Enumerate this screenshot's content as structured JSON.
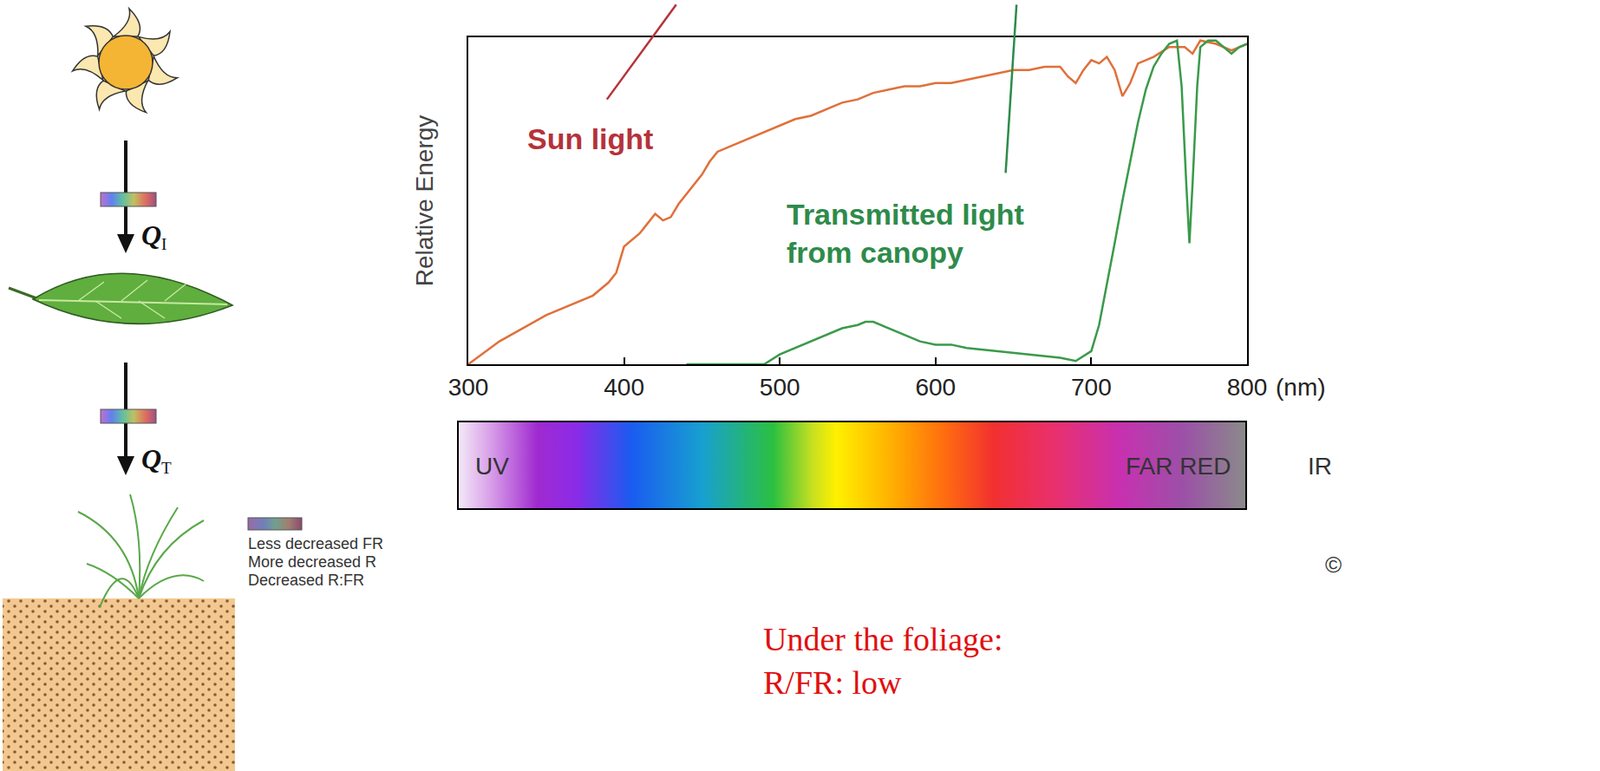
{
  "chart_data": {
    "type": "line",
    "ylabel": "Relative Energy",
    "xlabel": "(nm)",
    "xlim": [
      300,
      800
    ],
    "xticks": [
      300,
      400,
      500,
      600,
      700,
      800
    ],
    "ylim": [
      0,
      100
    ],
    "yticks": [],
    "tick_labels": "x",
    "grid": false,
    "series": [
      {
        "color": "#e0703a",
        "line_style": "solid",
        "x": [
          300,
          320,
          350,
          370,
          380,
          390,
          395,
          400,
          405,
          410,
          415,
          420,
          425,
          430,
          435,
          440,
          445,
          450,
          455,
          460,
          470,
          480,
          490,
          500,
          510,
          520,
          530,
          540,
          550,
          560,
          570,
          580,
          590,
          600,
          610,
          620,
          630,
          640,
          650,
          660,
          670,
          680,
          685,
          690,
          695,
          700,
          705,
          710,
          715,
          720,
          725,
          730,
          740,
          750,
          760,
          765,
          770,
          780,
          790,
          800
        ],
        "values": [
          0,
          7,
          15,
          19,
          21,
          25,
          28,
          36,
          38,
          40,
          43,
          46,
          44,
          45,
          49,
          52,
          55,
          58,
          62,
          65,
          67,
          69,
          71,
          73,
          75,
          76,
          78,
          80,
          81,
          83,
          84,
          85,
          85,
          86,
          86,
          87,
          88,
          89,
          90,
          90,
          91,
          91,
          88,
          86,
          90,
          93,
          92,
          94,
          90,
          82,
          86,
          92,
          94,
          97,
          97,
          95,
          99,
          98,
          96,
          98
        ]
      },
      {
        "color": "#3a9a4a",
        "line_style": "solid",
        "x": [
          440,
          490,
          500,
          510,
          520,
          530,
          540,
          550,
          555,
          560,
          570,
          580,
          590,
          600,
          610,
          620,
          640,
          660,
          680,
          690,
          700,
          705,
          710,
          715,
          720,
          725,
          730,
          735,
          740,
          745,
          750,
          755,
          758,
          761,
          763,
          765,
          768,
          770,
          775,
          780,
          785,
          790,
          795,
          800
        ],
        "values": [
          0,
          0,
          3,
          5,
          7,
          9,
          11,
          12,
          13,
          13,
          11,
          9,
          7,
          6,
          6,
          5,
          4,
          3,
          2,
          1,
          4,
          12,
          24,
          37,
          50,
          62,
          74,
          84,
          91,
          95,
          98,
          99,
          85,
          55,
          37,
          55,
          85,
          97,
          99,
          99,
          97,
          95,
          97,
          98
        ]
      }
    ],
    "annotations": [
      {
        "text": "Sun light",
        "x": 378,
        "y": 69,
        "color": "#b5323a"
      },
      {
        "text": "Transmitted light\nfrom canopy",
        "x": 503,
        "y": 40,
        "color": "#2e8b4a"
      }
    ]
  },
  "spectrum_bar": {
    "labels_inside": [
      "UV",
      "FAR RED"
    ],
    "label_outside": "IR"
  },
  "diagram": {
    "arrows": [
      {
        "symbol": "Q",
        "subscript": "I"
      },
      {
        "symbol": "Q",
        "subscript": "T"
      }
    ],
    "legend_lines": [
      "Less decreased FR",
      "More decreased R",
      "Decreased R:FR"
    ]
  },
  "note": [
    "Under the foliage:",
    "R/FR: low"
  ],
  "copyright": "©"
}
